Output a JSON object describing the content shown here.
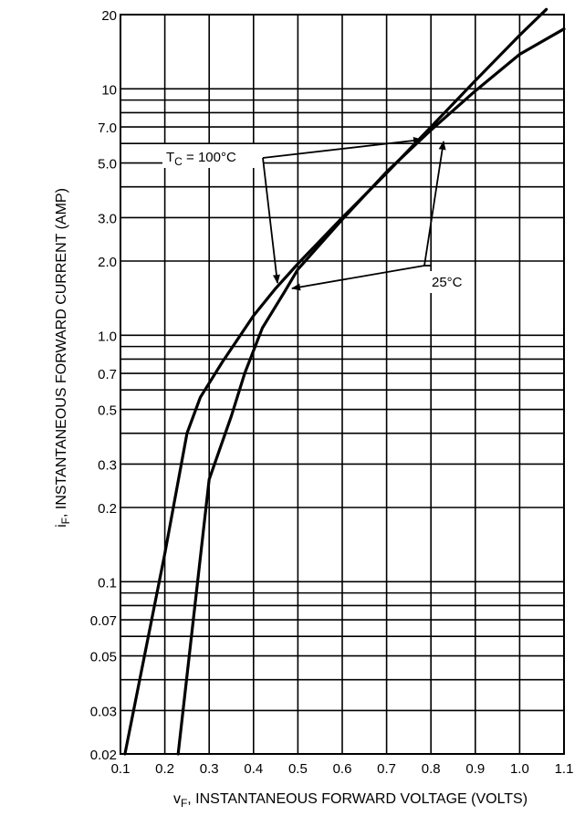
{
  "chart_data": {
    "type": "line",
    "x_scale": "linear",
    "y_scale": "log",
    "xlim": [
      0.1,
      1.1
    ],
    "ylim": [
      0.02,
      20
    ],
    "grid": true,
    "x_ticks": [
      "0.1",
      "0.2",
      "0.3",
      "0.4",
      "0.5",
      "0.6",
      "0.7",
      "0.8",
      "0.9",
      "1.0",
      "1.1"
    ],
    "y_ticks": [
      {
        "value": 20,
        "label": "20"
      },
      {
        "value": 10,
        "label": "10"
      },
      {
        "value": 7,
        "label": "7.0"
      },
      {
        "value": 5,
        "label": "5.0"
      },
      {
        "value": 3,
        "label": "3.0"
      },
      {
        "value": 2,
        "label": "2.0"
      },
      {
        "value": 1,
        "label": "1.0"
      },
      {
        "value": 0.7,
        "label": "0.7"
      },
      {
        "value": 0.5,
        "label": "0.5"
      },
      {
        "value": 0.3,
        "label": "0.3"
      },
      {
        "value": 0.2,
        "label": "0.2"
      },
      {
        "value": 0.1,
        "label": "0.1"
      },
      {
        "value": 0.07,
        "label": "0.07"
      },
      {
        "value": 0.05,
        "label": "0.05"
      },
      {
        "value": 0.03,
        "label": "0.03"
      },
      {
        "value": 0.02,
        "label": "0.02"
      }
    ],
    "ylabel_main": "i",
    "ylabel_sub": "F",
    "ylabel_rest": ", INSTANTANEOUS FORWARD CURRENT (AMP)",
    "xlabel_main": "v",
    "xlabel_sub": "F",
    "xlabel_rest": ", INSTANTANEOUS FORWARD VOLTAGE (VOLTS)",
    "series": [
      {
        "name": "100°C",
        "x": [
          0.11,
          0.2,
          0.25,
          0.28,
          0.33,
          0.4,
          0.45,
          0.5,
          0.6,
          0.7,
          0.8,
          0.9,
          1.0,
          1.06
        ],
        "y": [
          0.02,
          0.13,
          0.4,
          0.56,
          0.78,
          1.2,
          1.55,
          1.95,
          3.0,
          4.55,
          7.0,
          10.8,
          16.5,
          21.0
        ]
      },
      {
        "name": "25°C",
        "x": [
          0.23,
          0.3,
          0.35,
          0.38,
          0.42,
          0.47,
          0.5,
          0.6,
          0.7,
          0.8,
          0.9,
          1.0,
          1.1
        ],
        "y": [
          0.02,
          0.26,
          0.47,
          0.7,
          1.07,
          1.5,
          1.85,
          2.95,
          4.6,
          6.8,
          9.8,
          13.8,
          17.5
        ]
      }
    ],
    "annotations": {
      "tc_label_main": "T",
      "tc_label_sub": "C",
      "tc_label_rest": " = 100°C",
      "label_25": "25°C"
    }
  }
}
